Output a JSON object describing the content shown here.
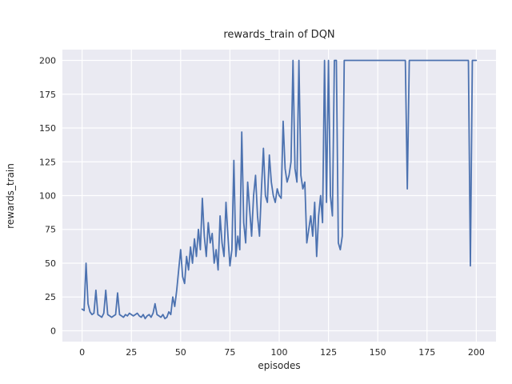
{
  "figure": {
    "title": "rewards_train of DQN",
    "xlabel": "episodes",
    "ylabel": "rewards_train"
  },
  "chart_data": {
    "type": "line",
    "title": "rewards_train of DQN",
    "xlabel": "episodes",
    "ylabel": "rewards_train",
    "x_start": 0,
    "x_step": 1,
    "xlim": [
      -10,
      210
    ],
    "ylim": [
      -8,
      208
    ],
    "x_ticks": [
      0,
      25,
      50,
      75,
      100,
      125,
      150,
      175,
      200
    ],
    "y_ticks": [
      0,
      25,
      50,
      75,
      100,
      125,
      150,
      175,
      200
    ],
    "grid": true,
    "legend": "none",
    "line_color": "#4c72b0",
    "panel_background": "#eaeaf2",
    "grid_color": "#ffffff",
    "tick_text_color": "#262626",
    "series": [
      {
        "name": "rewards_train",
        "values": [
          16,
          15,
          50,
          20,
          14,
          12,
          13,
          30,
          12,
          11,
          10,
          13,
          30,
          12,
          11,
          10,
          11,
          12,
          28,
          12,
          11,
          10,
          12,
          11,
          13,
          12,
          11,
          12,
          13,
          11,
          10,
          12,
          9,
          11,
          12,
          10,
          13,
          20,
          12,
          11,
          10,
          12,
          9,
          10,
          14,
          12,
          25,
          18,
          30,
          45,
          60,
          40,
          35,
          55,
          45,
          62,
          50,
          68,
          55,
          75,
          60,
          98,
          70,
          55,
          80,
          65,
          72,
          50,
          60,
          45,
          85,
          65,
          55,
          95,
          70,
          48,
          60,
          126,
          55,
          70,
          60,
          147,
          80,
          65,
          110,
          90,
          70,
          100,
          115,
          85,
          70,
          105,
          135,
          100,
          95,
          130,
          110,
          100,
          95,
          105,
          100,
          98,
          155,
          120,
          110,
          115,
          125,
          200,
          120,
          110,
          200,
          115,
          105,
          110,
          65,
          75,
          85,
          70,
          95,
          55,
          85,
          100,
          80,
          200,
          95,
          200,
          100,
          85,
          200,
          200,
          65,
          60,
          70,
          200,
          200,
          200,
          200,
          200,
          200,
          200,
          200,
          200,
          200,
          200,
          200,
          200,
          200,
          200,
          200,
          200,
          200,
          200,
          200,
          200,
          200,
          200,
          200,
          200,
          200,
          200,
          200,
          200,
          200,
          200,
          200,
          105,
          200,
          200,
          200,
          200,
          200,
          200,
          200,
          200,
          200,
          200,
          200,
          200,
          200,
          200,
          200,
          200,
          200,
          200,
          200,
          200,
          200,
          200,
          200,
          200,
          200,
          200,
          200,
          200,
          200,
          200,
          200,
          48,
          200,
          200,
          200
        ]
      }
    ]
  }
}
